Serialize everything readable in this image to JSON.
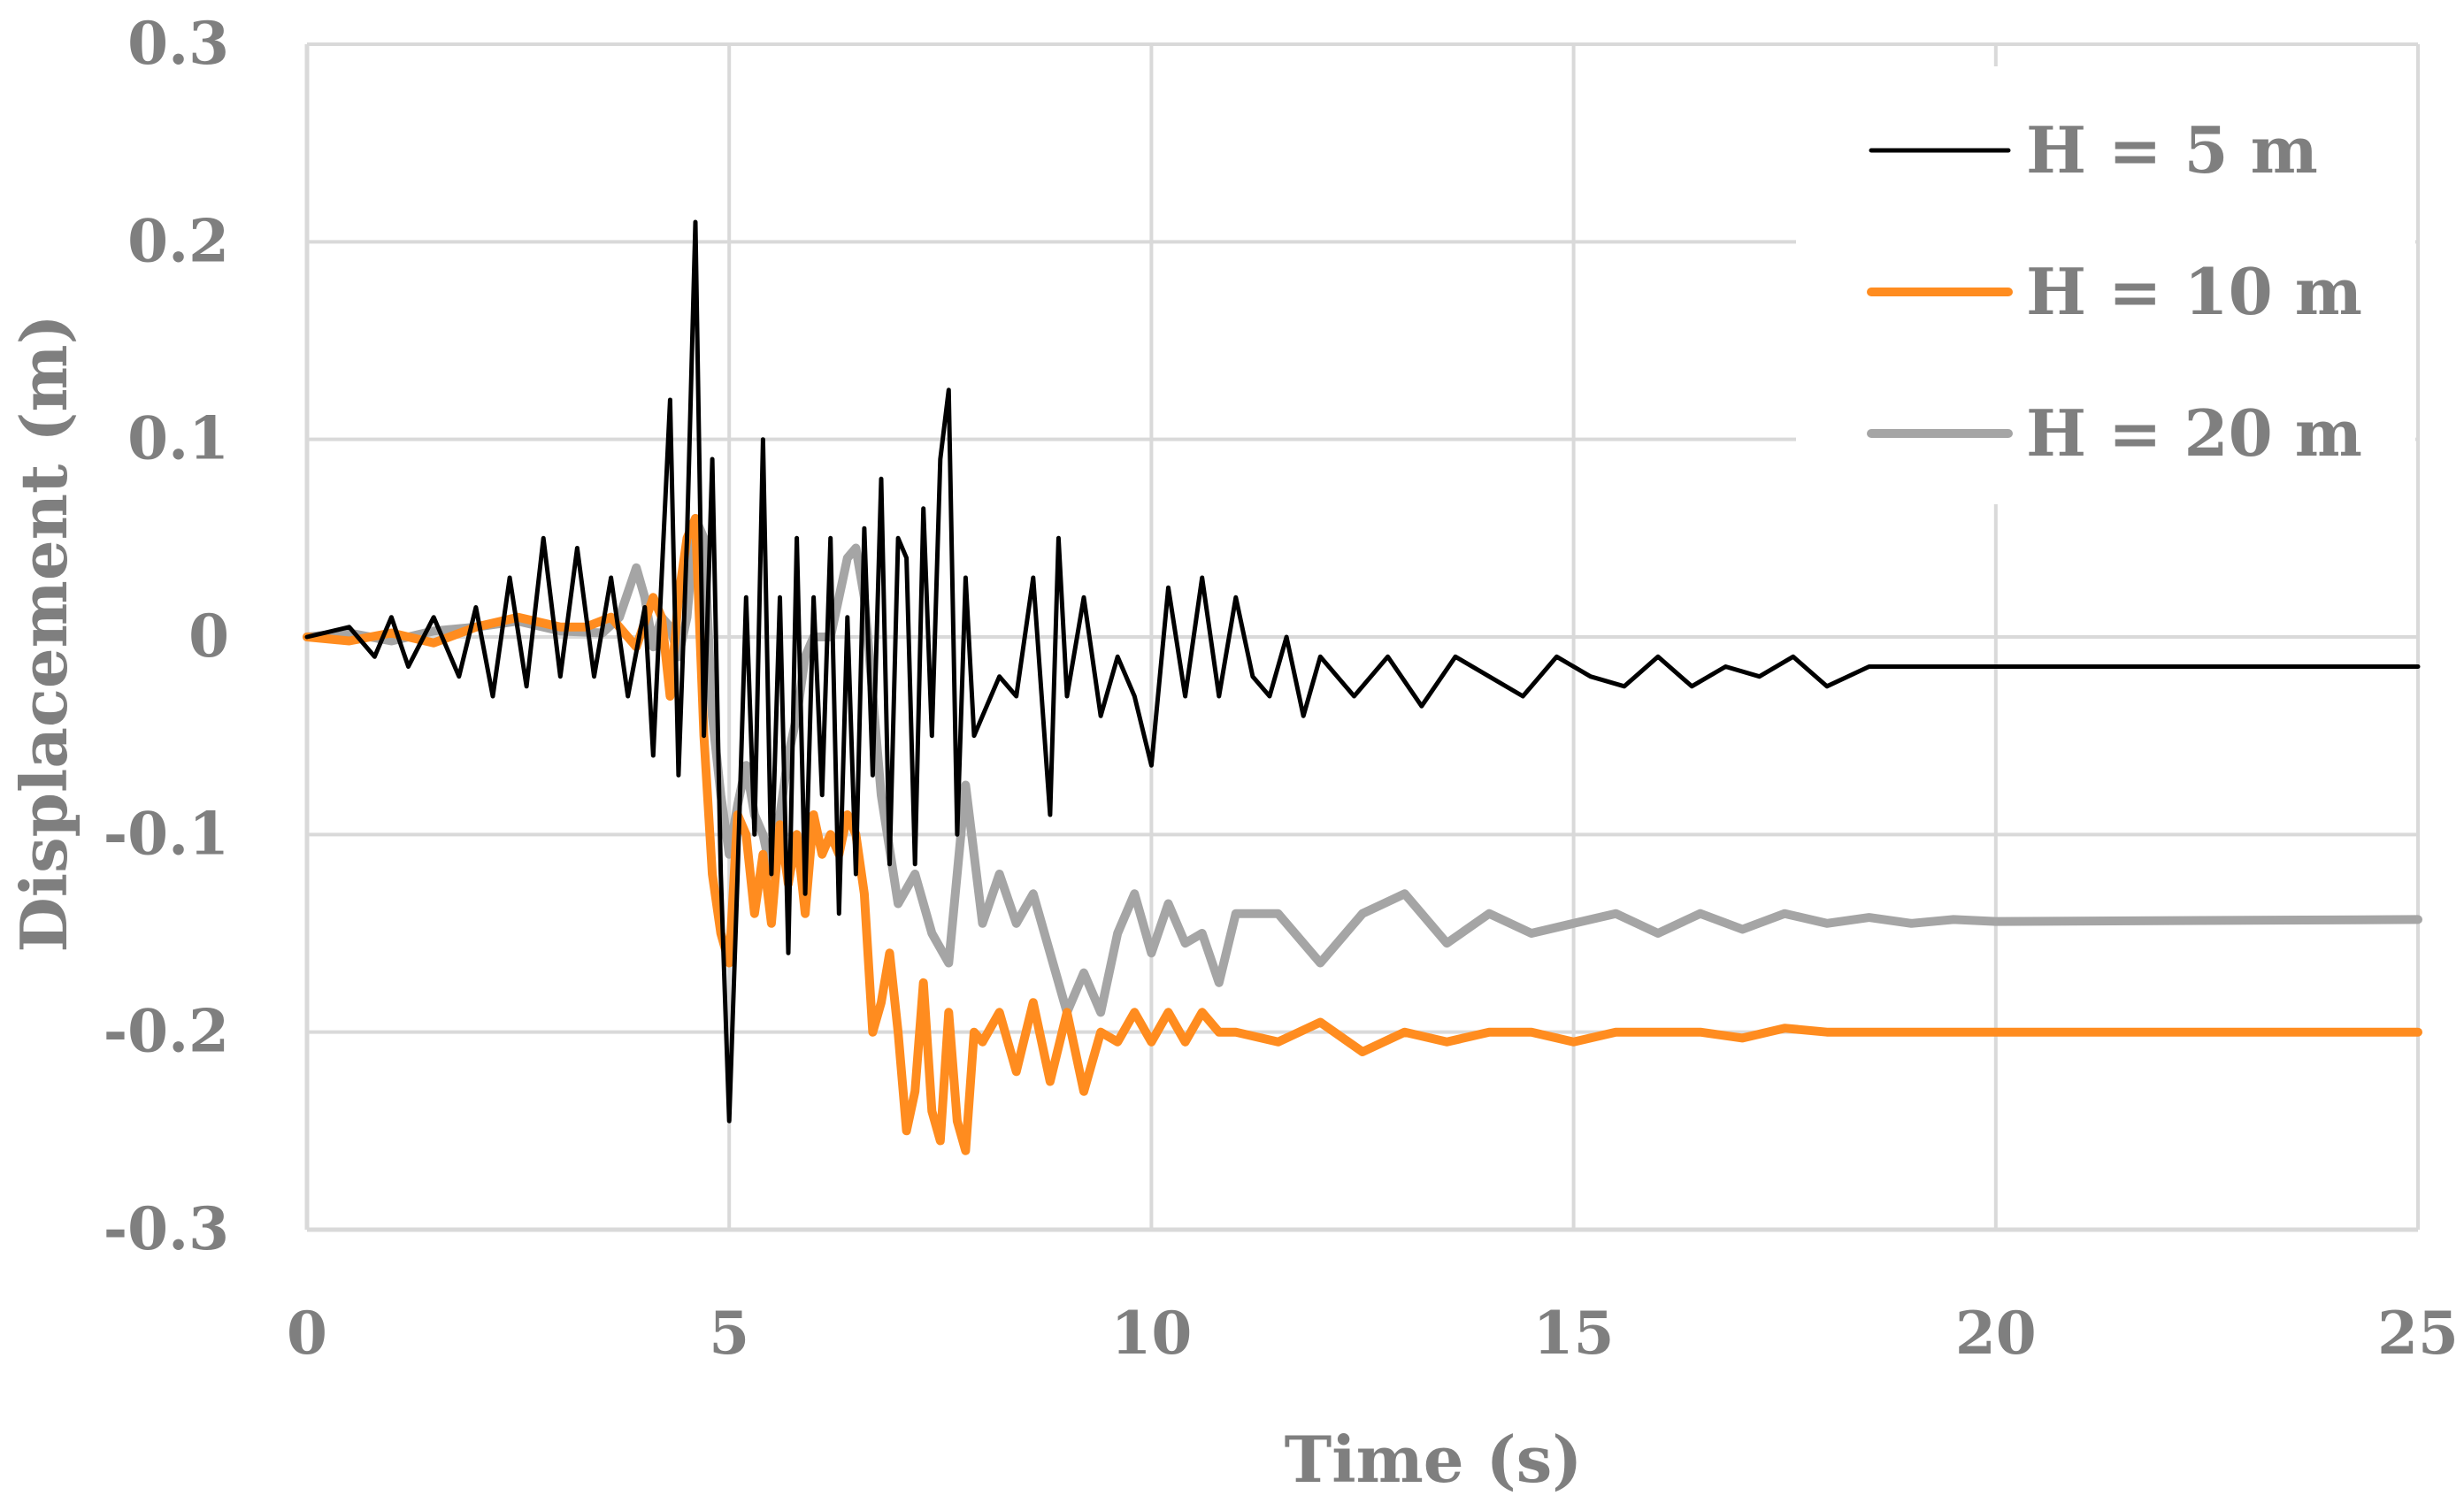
{
  "chart_data": {
    "type": "line",
    "xlabel": "Time (s)",
    "ylabel": "Displacement (m)",
    "xlim": [
      0,
      25
    ],
    "ylim": [
      -0.3,
      0.3
    ],
    "x_ticks": [
      "0",
      "5",
      "10",
      "15",
      "20",
      "25"
    ],
    "y_ticks": [
      "0.3",
      "0.2",
      "0.1",
      "0",
      "-0.1",
      "-0.2",
      "-0.3"
    ],
    "grid": true,
    "legend_position": "top-right",
    "series": [
      {
        "name": "H = 5 m",
        "color": "#000000",
        "x": [
          0,
          0.5,
          0.8,
          1.0,
          1.2,
          1.5,
          1.8,
          2.0,
          2.2,
          2.4,
          2.6,
          2.8,
          3.0,
          3.2,
          3.4,
          3.6,
          3.8,
          4.0,
          4.1,
          4.2,
          4.3,
          4.4,
          4.5,
          4.6,
          4.7,
          4.8,
          4.9,
          5.0,
          5.1,
          5.2,
          5.3,
          5.4,
          5.5,
          5.6,
          5.7,
          5.8,
          5.9,
          6.0,
          6.1,
          6.2,
          6.3,
          6.4,
          6.5,
          6.6,
          6.7,
          6.8,
          6.9,
          7.0,
          7.1,
          7.2,
          7.3,
          7.4,
          7.5,
          7.6,
          7.7,
          7.8,
          7.9,
          8.0,
          8.2,
          8.4,
          8.6,
          8.8,
          8.9,
          9.0,
          9.2,
          9.4,
          9.6,
          9.8,
          10.0,
          10.2,
          10.4,
          10.6,
          10.8,
          11.0,
          11.2,
          11.4,
          11.6,
          11.8,
          12.0,
          12.4,
          12.8,
          13.2,
          13.6,
          14.0,
          14.4,
          14.8,
          15.2,
          15.6,
          16.0,
          16.4,
          16.8,
          17.2,
          17.6,
          18.0,
          18.5,
          19.0,
          19.5,
          20.0,
          25.0
        ],
        "y": [
          0,
          0.005,
          -0.01,
          0.01,
          -0.015,
          0.01,
          -0.02,
          0.015,
          -0.03,
          0.03,
          -0.025,
          0.05,
          -0.02,
          0.045,
          -0.02,
          0.03,
          -0.03,
          0.015,
          -0.06,
          0.03,
          0.12,
          -0.07,
          0.05,
          0.21,
          -0.05,
          0.09,
          -0.12,
          -0.245,
          -0.12,
          0.02,
          -0.1,
          0.1,
          -0.12,
          0.02,
          -0.16,
          0.05,
          -0.13,
          0.02,
          -0.08,
          0.05,
          -0.14,
          0.01,
          -0.12,
          0.055,
          -0.07,
          0.08,
          -0.115,
          0.05,
          0.04,
          -0.115,
          0.065,
          -0.05,
          0.09,
          0.125,
          -0.1,
          0.03,
          -0.05,
          -0.04,
          -0.02,
          -0.03,
          0.03,
          -0.09,
          0.05,
          -0.03,
          0.02,
          -0.04,
          -0.01,
          -0.03,
          -0.065,
          0.025,
          -0.03,
          0.03,
          -0.03,
          0.02,
          -0.02,
          -0.03,
          0.0,
          -0.04,
          -0.01,
          -0.03,
          -0.01,
          -0.035,
          -0.01,
          -0.02,
          -0.03,
          -0.01,
          -0.02,
          -0.025,
          -0.01,
          -0.025,
          -0.015,
          -0.02,
          -0.01,
          -0.025,
          -0.015,
          -0.015,
          -0.015,
          -0.015,
          -0.015
        ]
      },
      {
        "name": "H = 10 m",
        "color": "#ff8c1f",
        "x": [
          0,
          0.5,
          1.0,
          1.5,
          2.0,
          2.5,
          3.0,
          3.3,
          3.6,
          3.9,
          4.1,
          4.2,
          4.3,
          4.4,
          4.5,
          4.6,
          4.7,
          4.8,
          4.9,
          5.0,
          5.1,
          5.2,
          5.3,
          5.4,
          5.5,
          5.6,
          5.7,
          5.8,
          5.9,
          6.0,
          6.1,
          6.2,
          6.3,
          6.4,
          6.5,
          6.6,
          6.7,
          6.8,
          6.9,
          7.0,
          7.1,
          7.2,
          7.3,
          7.4,
          7.5,
          7.6,
          7.7,
          7.8,
          7.9,
          8.0,
          8.2,
          8.4,
          8.6,
          8.8,
          9.0,
          9.2,
          9.4,
          9.6,
          9.8,
          10.0,
          10.2,
          10.4,
          10.6,
          10.8,
          11.0,
          11.5,
          12.0,
          12.5,
          13.0,
          13.5,
          14.0,
          14.5,
          15.0,
          15.5,
          16.0,
          16.5,
          17.0,
          17.5,
          18.0,
          18.5,
          19.0,
          19.5,
          20.0,
          25.0
        ],
        "y": [
          0,
          -0.002,
          0.002,
          -0.003,
          0.005,
          0.01,
          0.005,
          0.005,
          0.01,
          -0.005,
          0.02,
          0.01,
          -0.03,
          0.02,
          0.05,
          0.06,
          -0.05,
          -0.12,
          -0.15,
          -0.165,
          -0.09,
          -0.1,
          -0.14,
          -0.11,
          -0.145,
          -0.095,
          -0.125,
          -0.1,
          -0.14,
          -0.09,
          -0.11,
          -0.1,
          -0.11,
          -0.09,
          -0.1,
          -0.13,
          -0.2,
          -0.185,
          -0.16,
          -0.2,
          -0.25,
          -0.23,
          -0.175,
          -0.24,
          -0.255,
          -0.19,
          -0.245,
          -0.26,
          -0.2,
          -0.205,
          -0.19,
          -0.22,
          -0.185,
          -0.225,
          -0.19,
          -0.23,
          -0.2,
          -0.205,
          -0.19,
          -0.205,
          -0.19,
          -0.205,
          -0.19,
          -0.2,
          -0.2,
          -0.205,
          -0.195,
          -0.21,
          -0.2,
          -0.205,
          -0.2,
          -0.2,
          -0.205,
          -0.2,
          -0.2,
          -0.2,
          -0.203,
          -0.198,
          -0.2,
          -0.2,
          -0.2,
          -0.2,
          -0.2,
          -0.2
        ]
      },
      {
        "name": "H = 20 m",
        "color": "#a5a5a5",
        "x": [
          0,
          0.5,
          1.0,
          1.5,
          2.0,
          2.5,
          3.0,
          3.5,
          3.7,
          3.9,
          4.0,
          4.1,
          4.2,
          4.3,
          4.4,
          4.5,
          4.6,
          4.7,
          4.8,
          4.9,
          5.0,
          5.1,
          5.2,
          5.3,
          5.4,
          5.5,
          5.6,
          5.7,
          5.8,
          5.9,
          6.0,
          6.2,
          6.4,
          6.5,
          6.6,
          6.8,
          7.0,
          7.2,
          7.4,
          7.6,
          7.8,
          8.0,
          8.2,
          8.4,
          8.6,
          8.8,
          9.0,
          9.2,
          9.4,
          9.6,
          9.8,
          10.0,
          10.2,
          10.4,
          10.6,
          10.8,
          11.0,
          11.5,
          12.0,
          12.5,
          13.0,
          13.5,
          14.0,
          14.5,
          15.0,
          15.5,
          16.0,
          16.5,
          17.0,
          17.5,
          18.0,
          18.5,
          19.0,
          19.5,
          20.0,
          25.0
        ],
        "y": [
          0,
          0.002,
          -0.002,
          0.003,
          0.005,
          0.008,
          0.003,
          0.002,
          0.01,
          0.035,
          0.02,
          -0.005,
          0.01,
          0.005,
          -0.01,
          0.01,
          0.06,
          0.05,
          -0.04,
          -0.08,
          -0.11,
          -0.085,
          -0.065,
          -0.09,
          -0.1,
          -0.12,
          -0.09,
          -0.06,
          -0.04,
          -0.01,
          0.0,
          0.0,
          0.04,
          0.045,
          0.02,
          -0.08,
          -0.135,
          -0.12,
          -0.15,
          -0.165,
          -0.075,
          -0.145,
          -0.12,
          -0.145,
          -0.13,
          -0.16,
          -0.19,
          -0.17,
          -0.19,
          -0.15,
          -0.13,
          -0.16,
          -0.135,
          -0.155,
          -0.15,
          -0.175,
          -0.14,
          -0.14,
          -0.165,
          -0.14,
          -0.13,
          -0.155,
          -0.14,
          -0.15,
          -0.145,
          -0.14,
          -0.15,
          -0.14,
          -0.148,
          -0.14,
          -0.145,
          -0.142,
          -0.145,
          -0.143,
          -0.144,
          -0.143
        ]
      }
    ]
  }
}
